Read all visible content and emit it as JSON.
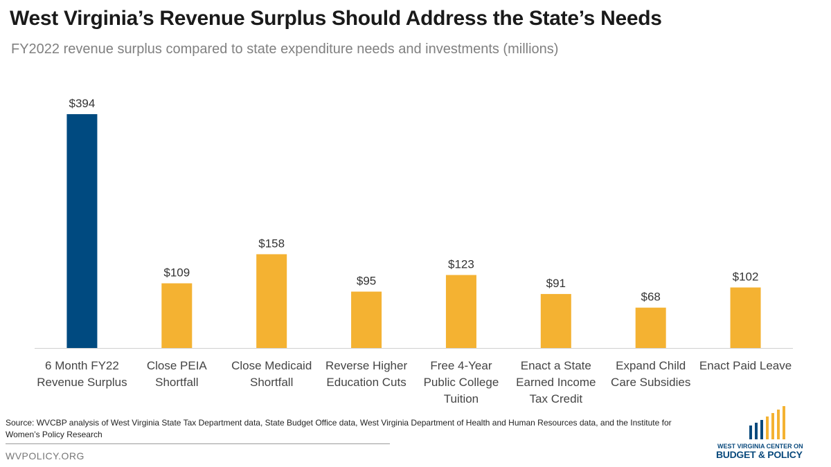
{
  "header": {
    "title": "West Virginia’s Revenue Surplus Should Address the State’s Needs",
    "subtitle": "FY2022 revenue surplus compared to state expenditure needs and investments (millions)"
  },
  "chart_data": {
    "type": "bar",
    "title": "West Virginia’s Revenue Surplus Should Address the State’s Needs",
    "subtitle": "FY2022 revenue surplus compared to state expenditure needs and investments (millions)",
    "categories": [
      [
        "6 Month FY22",
        "Revenue Surplus"
      ],
      [
        "Close PEIA",
        "Shortfall"
      ],
      [
        "Close Medicaid",
        "Shortfall"
      ],
      [
        "Reverse Higher",
        "Education Cuts"
      ],
      [
        "Free 4-Year",
        "Public College",
        "Tuition"
      ],
      [
        "Enact a State",
        "Earned Income",
        "Tax Credit"
      ],
      [
        "Expand Child",
        "Care Subsidies"
      ],
      [
        "Enact Paid Leave"
      ]
    ],
    "values": [
      394,
      109,
      158,
      95,
      123,
      91,
      68,
      102
    ],
    "value_labels": [
      "$394",
      "$109",
      "$158",
      "$95",
      "$123",
      "$91",
      "$68",
      "$102"
    ],
    "colors": [
      "#004a80",
      "#f4b232",
      "#f4b232",
      "#f4b232",
      "#f4b232",
      "#f4b232",
      "#f4b232",
      "#f4b232"
    ],
    "ylim": [
      0,
      394
    ],
    "xlabel": "",
    "ylabel": "",
    "grid": false,
    "legend": "none"
  },
  "footer": {
    "source": "Source: WVCBP analysis of West Virginia State Tax Department data, State Budget Office data, West Virginia Department of Health and Human Resources data, and the Institute for Women’s Policy Research",
    "website": "WVPOLICY.ORG"
  },
  "logo": {
    "line1": "WEST VIRGINIA CENTER ON",
    "line2": "BUDGET & POLICY",
    "colors": {
      "blue": "#0a4a7d",
      "gold": "#f4b232"
    }
  }
}
